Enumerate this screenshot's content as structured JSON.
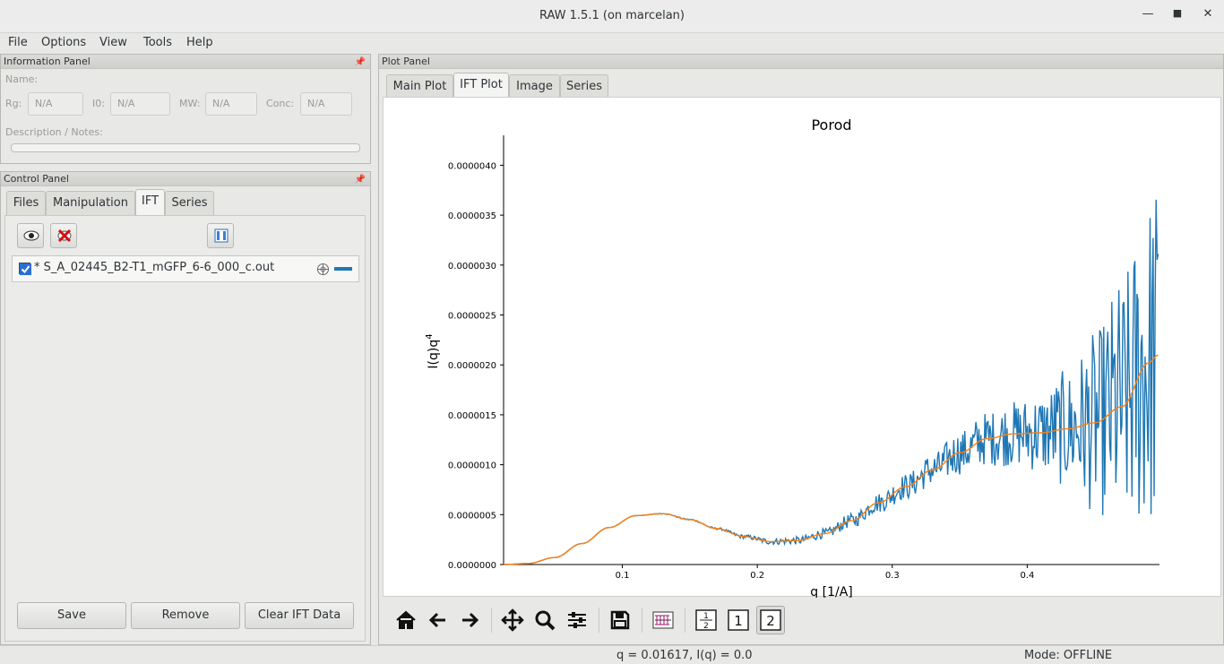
{
  "window": {
    "title": "RAW 1.5.1 (on marcelan)"
  },
  "menubar": {
    "items": [
      "File",
      "Options",
      "View",
      "Tools",
      "Help"
    ]
  },
  "info_panel": {
    "header": "Information Panel",
    "name_label": "Name:",
    "fields": [
      {
        "label": "Rg:",
        "value": "N/A"
      },
      {
        "label": "I0:",
        "value": "N/A"
      },
      {
        "label": "MW:",
        "value": "N/A"
      },
      {
        "label": "Conc:",
        "value": "N/A"
      }
    ],
    "description_label": "Description / Notes:"
  },
  "control_panel": {
    "header": "Control Panel",
    "tabs": [
      "Files",
      "Manipulation",
      "IFT",
      "Series"
    ],
    "active_tab": "IFT",
    "toolbar_icons": [
      "eye-icon",
      "close-red-icon",
      "columns-icon"
    ],
    "items": [
      {
        "label": "* S_A_02445_B2-T1_mGFP_6-6_000_c.out",
        "checked": true,
        "line_color": "#1f77b4"
      }
    ],
    "buttons": {
      "save": "Save",
      "remove": "Remove",
      "clear": "Clear IFT Data"
    }
  },
  "plot_panel": {
    "header": "Plot Panel",
    "tabs": [
      "Main Plot",
      "IFT Plot",
      "Image",
      "Series"
    ],
    "active_tab": "IFT Plot",
    "toolbar_icons": [
      "home-icon",
      "back-arrow-icon",
      "forward-arrow-icon",
      "pan-icon",
      "zoom-icon",
      "configure-icon",
      "save-icon",
      "errorbar-icon",
      "half-icon",
      "one-icon",
      "two-icon"
    ],
    "toolbar_labels": {
      "half_top": "1",
      "half_bottom": "2",
      "one": "1",
      "two": "2"
    }
  },
  "chart_data": {
    "type": "line",
    "title": "Porod",
    "xlabel": "q [1/A]",
    "ylabel": "I(q)q",
    "ylabel_superscript": "4",
    "xlim": [
      0.012,
      0.498
    ],
    "ylim": [
      0,
      4.3e-06
    ],
    "xticks": [
      0.1,
      0.2,
      0.3,
      0.4
    ],
    "xtick_labels": [
      "0.1",
      "0.2",
      "0.3",
      "0.4"
    ],
    "yticks": [
      0,
      5e-07,
      1e-06,
      1.5e-06,
      2e-06,
      2.5e-06,
      3e-06,
      3.5e-06,
      4e-06
    ],
    "ytick_labels": [
      "0.0000000",
      "0.0000005",
      "0.0000010",
      "0.0000015",
      "0.0000020",
      "0.0000025",
      "0.0000030",
      "0.0000035",
      "0.0000040"
    ],
    "grid": false,
    "series": [
      {
        "color": "#1f77b4",
        "x": [
          0.012,
          0.03,
          0.05,
          0.07,
          0.09,
          0.11,
          0.13,
          0.15,
          0.17,
          0.19,
          0.21,
          0.23,
          0.25,
          0.27,
          0.29,
          0.31,
          0.33,
          0.35,
          0.37,
          0.39,
          0.41,
          0.43,
          0.45,
          0.47,
          0.49,
          0.497
        ],
        "y": [
          0,
          1e-08,
          7e-08,
          2.1e-07,
          3.7e-07,
          4.9e-07,
          5.1e-07,
          4.5e-07,
          3.6e-07,
          2.8e-07,
          2.3e-07,
          2.4e-07,
          3.1e-07,
          4.4e-07,
          6.2e-07,
          7.8e-07,
          9.5e-07,
          1.12e-06,
          1.26e-06,
          1.31e-06,
          1.32e-06,
          1.36e-06,
          1.42e-06,
          1.58e-06,
          2.02e-06,
          2.1e-06
        ],
        "noise_amplitude": [
          0,
          0,
          0,
          0,
          0,
          0,
          4e-09,
          8e-09,
          1e-08,
          2e-08,
          3e-08,
          4e-08,
          5e-08,
          7e-08,
          1e-07,
          1.3e-07,
          1.7e-07,
          2.2e-07,
          2.7e-07,
          3.3e-07,
          4e-07,
          6e-07,
          9e-07,
          1.3e-06,
          1.7e-06,
          1.8e-06
        ]
      },
      {
        "color": "#ff7f0e",
        "x": [
          0.012,
          0.03,
          0.05,
          0.07,
          0.09,
          0.11,
          0.13,
          0.15,
          0.17,
          0.19,
          0.21,
          0.23,
          0.25,
          0.27,
          0.29,
          0.31,
          0.33,
          0.35,
          0.37,
          0.39,
          0.41,
          0.43,
          0.45,
          0.47,
          0.49,
          0.497
        ],
        "y": [
          0,
          1e-08,
          7e-08,
          2.1e-07,
          3.7e-07,
          4.9e-07,
          5.1e-07,
          4.5e-07,
          3.6e-07,
          2.8e-07,
          2.3e-07,
          2.4e-07,
          3.1e-07,
          4.4e-07,
          6.2e-07,
          7.8e-07,
          9.5e-07,
          1.12e-06,
          1.26e-06,
          1.31e-06,
          1.32e-06,
          1.36e-06,
          1.42e-06,
          1.58e-06,
          2.02e-06,
          2.1e-06
        ]
      }
    ]
  },
  "statusbar": {
    "readout": "q = 0.01617, I(q) = 0.0",
    "mode": "Mode: OFFLINE"
  }
}
